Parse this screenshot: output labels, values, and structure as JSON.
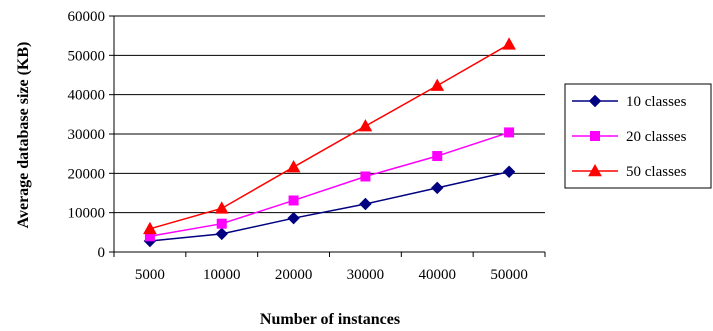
{
  "chart_data": {
    "type": "line",
    "categories": [
      "5000",
      "10000",
      "20000",
      "30000",
      "40000",
      "50000"
    ],
    "series": [
      {
        "name": "10 classes",
        "values": [
          2800,
          4600,
          8600,
          12200,
          16300,
          20400
        ],
        "color": "#000080",
        "marker": "diamond"
      },
      {
        "name": "20 classes",
        "values": [
          4000,
          7200,
          13100,
          19200,
          24400,
          30400
        ],
        "color": "#ff00ff",
        "marker": "square"
      },
      {
        "name": "50 classes",
        "values": [
          5900,
          11100,
          21600,
          32000,
          42300,
          52800
        ],
        "color": "#ff0000",
        "marker": "triangle"
      }
    ],
    "yticks": [
      "0",
      "10000",
      "20000",
      "30000",
      "40000",
      "50000",
      "60000"
    ],
    "ylim": [
      0,
      60000
    ],
    "xlabel": "Number of instances",
    "ylabel": "Average database size (KB)",
    "grid": "horizontal",
    "legend_position": "right"
  }
}
